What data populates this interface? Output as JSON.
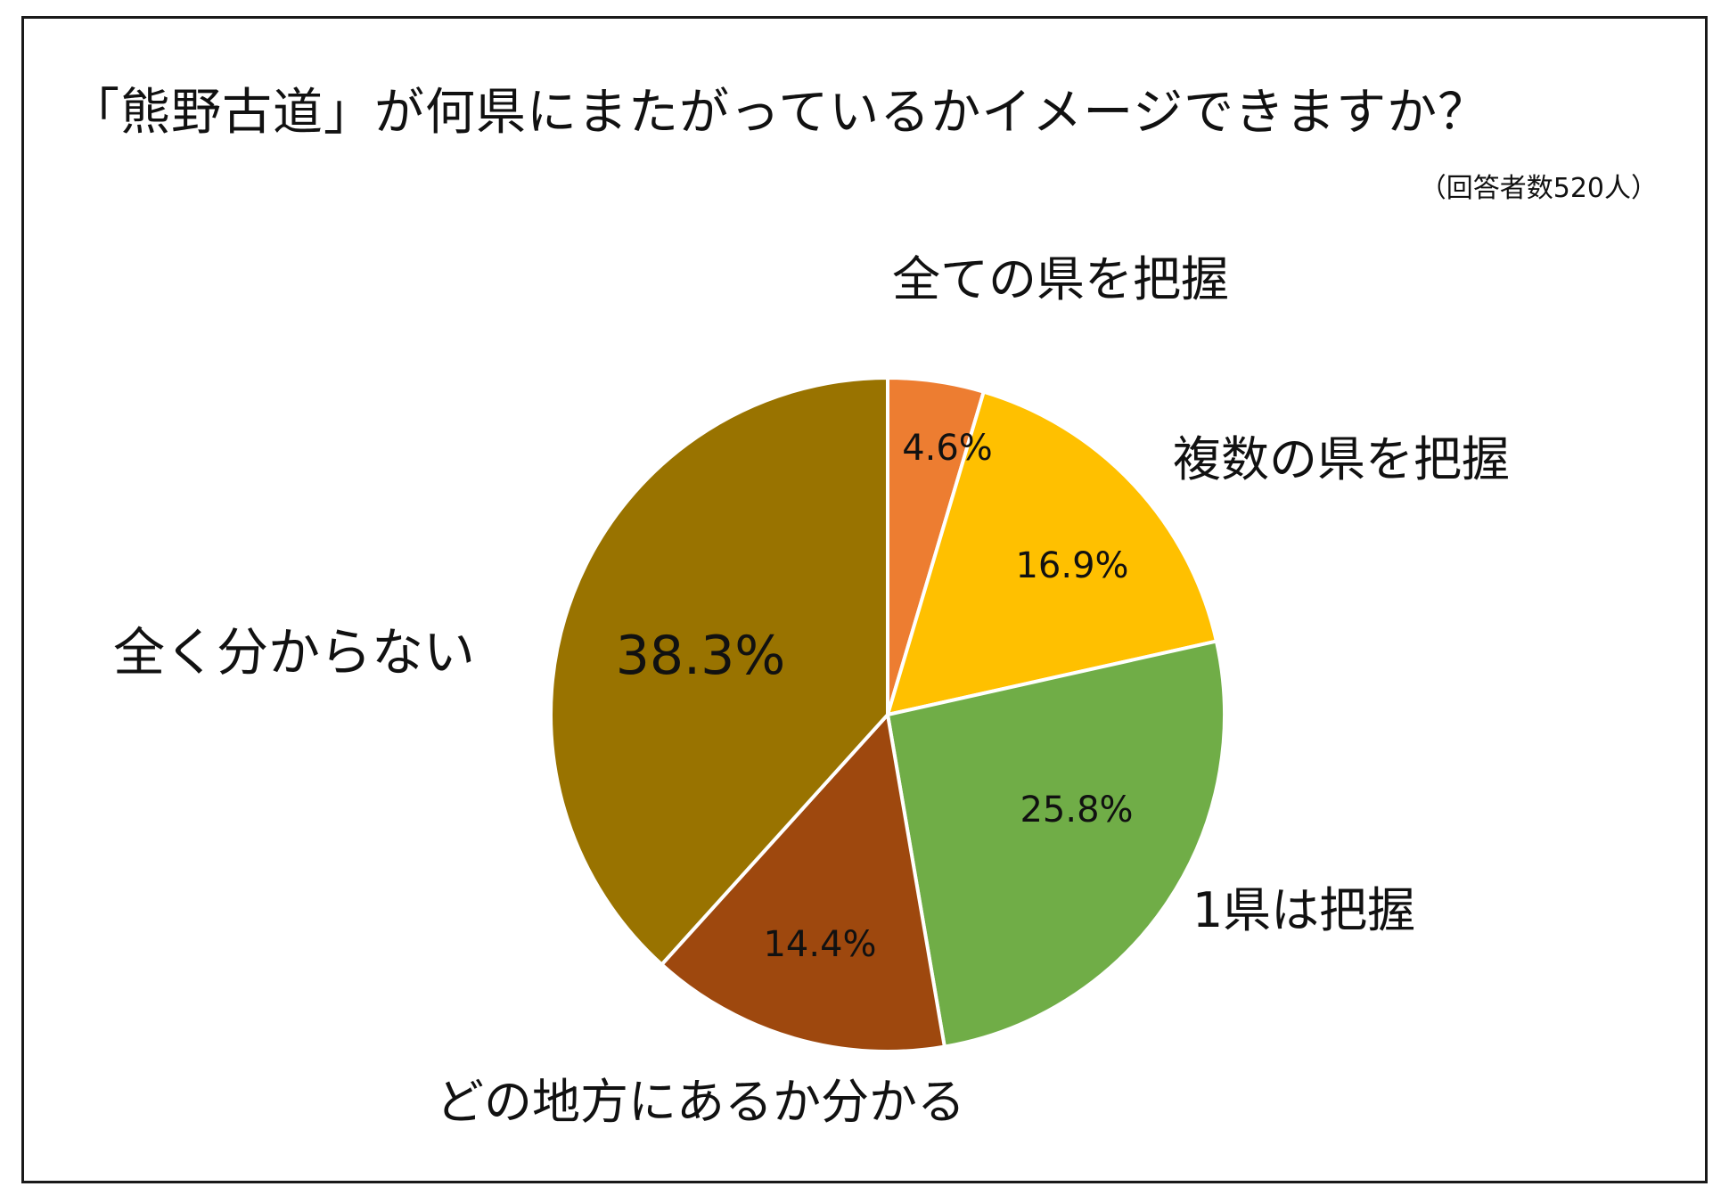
{
  "title": "「熊野古道」が何県にまたがっているかイメージできますか？",
  "subtitle": "（回答者数520人）",
  "chart_data": {
    "type": "pie",
    "title": "「熊野古道」が何県にまたがっているかイメージできますか？",
    "subtitle": "（回答者数520人）",
    "direction": "clockwise",
    "start": "12 o'clock",
    "slices": [
      {
        "label": "全ての県を把握",
        "value": 4.6,
        "value_label": "4.6%",
        "color": "#ED7D31"
      },
      {
        "label": "複数の県を把握",
        "value": 16.9,
        "value_label": "16.9%",
        "color": "#FFC000"
      },
      {
        "label": "1県は把握",
        "value": 25.8,
        "value_label": "25.8%",
        "color": "#70AD47"
      },
      {
        "label": "どの地方にあるか分かる",
        "value": 14.4,
        "value_label": "14.4%",
        "color": "#9E480E"
      },
      {
        "label": "全く分からない",
        "value": 38.3,
        "value_label": "38.3%",
        "color": "#997300"
      }
    ]
  }
}
